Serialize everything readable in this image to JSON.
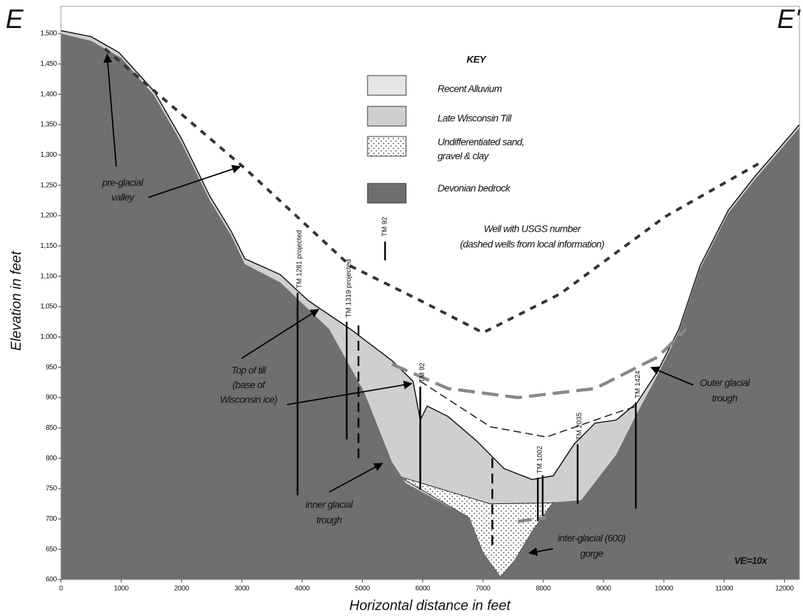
{
  "chart_data": {
    "type": "cross-section",
    "section_start": "E",
    "section_end": "E'",
    "xlabel": "Horizontal distance in feet",
    "ylabel": "Elevation in feet",
    "xlim": [
      0,
      12250
    ],
    "ylim": [
      600,
      1545
    ],
    "xticks": [
      0,
      1000,
      2000,
      3000,
      4000,
      5000,
      6000,
      7000,
      8000,
      9000,
      10000,
      11000,
      12000
    ],
    "yticks": [
      600,
      650,
      700,
      750,
      800,
      850,
      900,
      950,
      {
        "value": 1000,
        "label": "1,000"
      },
      {
        "value": 1050,
        "label": "1,050"
      },
      {
        "value": 1100,
        "label": "1,100"
      },
      {
        "value": 1150,
        "label": "1,150"
      },
      {
        "value": 1200,
        "label": "1,200"
      },
      {
        "value": 1250,
        "label": "1,250"
      },
      {
        "value": 1300,
        "label": "1,300"
      },
      {
        "value": 1350,
        "label": "1,350"
      },
      {
        "value": 1400,
        "label": "1,400"
      },
      {
        "value": 1450,
        "label": "1,450"
      },
      {
        "value": 1500,
        "label": "1,500"
      }
    ],
    "ground_surface": {
      "color": "#cfcfcf",
      "x": [
        0,
        500,
        960,
        1545,
        2010,
        2470,
        2820,
        3050,
        3635,
        4100,
        4800,
        5490,
        5840,
        5960,
        6075,
        6420,
        6890,
        7350,
        7815,
        8165,
        8510,
        8860,
        9210,
        9560,
        9900,
        10250,
        10600,
        11070,
        11530,
        11880,
        12250
      ],
      "y": [
        1505,
        1495,
        1469,
        1405,
        1325,
        1232,
        1175,
        1129,
        1103,
        1060,
        1013,
        961,
        927,
        863,
        886,
        869,
        829,
        783,
        765,
        771,
        823,
        858,
        863,
        892,
        944,
        1013,
        1117,
        1209,
        1267,
        1307,
        1350
      ]
    },
    "bedrock_surface": {
      "color": "#6f6f6f",
      "x": [
        0,
        500,
        1000,
        1545,
        2010,
        2470,
        2820,
        3050,
        3635,
        4450,
        5030,
        5490,
        5720,
        6770,
        7000,
        7290,
        7530,
        7815,
        8165,
        8630,
        9210,
        9560,
        9900,
        10250,
        10600,
        11070,
        11530,
        11880,
        12250
      ],
      "y": [
        1500,
        1488,
        1460,
        1398,
        1318,
        1225,
        1168,
        1120,
        1090,
        1013,
        909,
        794,
        759,
        702,
        644,
        604,
        632,
        679,
        727,
        731,
        806,
        875,
        938,
        1008,
        1112,
        1204,
        1262,
        1302,
        1345
      ]
    },
    "sand_gravel_clay": {
      "x": [
        5610,
        7120,
        8510,
        8165,
        7815,
        7530,
        7290,
        7000,
        6770
      ],
      "y": [
        770,
        725,
        727,
        727,
        679,
        632,
        604,
        644,
        702
      ]
    },
    "pre_glacial_valley": {
      "color": "#333333",
      "x": [
        730,
        3050,
        4800,
        5960,
        7000,
        8280,
        10020,
        11650
      ],
      "y": [
        1475,
        1278,
        1117,
        1060,
        1007,
        1071,
        1198,
        1290
      ]
    },
    "outer_glacial_trough": {
      "color": "#888888",
      "x": [
        5490,
        6420,
        7580,
        8860,
        9900,
        10370
      ],
      "y": [
        955,
        915,
        900,
        915,
        967,
        1013
      ]
    },
    "inner_glacial_trough": {
      "color": "#222222",
      "x": [
        5960,
        7120,
        8050,
        9210,
        9560
      ],
      "y": [
        927,
        852,
        835,
        875,
        886
      ]
    },
    "inter_glacial_gorge": {
      "color": "#888888",
      "x": [
        7580,
        8050
      ],
      "y": [
        696,
        702
      ]
    },
    "wells": [
      {
        "label": "TM 1281 projected",
        "x": 3925,
        "top": 1073,
        "bottom": 739
      },
      {
        "label": "TM 1319 projected",
        "x": 4740,
        "top": 1025,
        "bottom": 831
      },
      {
        "x": 4935,
        "top": 1019,
        "bottom": 800,
        "dashed": true
      },
      {
        "label": "TM 92",
        "x": 5960,
        "top": 918,
        "bottom": 748
      },
      {
        "x": 7155,
        "top": 800,
        "bottom": 656,
        "dashed": true
      },
      {
        "label": "TM 1002",
        "x": 7910,
        "top": 768,
        "bottom": 696
      },
      {
        "x": 7990,
        "top": 772,
        "bottom": 705
      },
      {
        "label": "TM 2035",
        "x": 8570,
        "top": 823,
        "bottom": 725
      },
      {
        "label": "TM 1424",
        "x": 9535,
        "top": 892,
        "bottom": 717
      }
    ],
    "key": {
      "title": "KEY",
      "items": [
        "Recent Alluvium",
        "Late Wisconsin Till",
        [
          "Undifferentiated sand,",
          "gravel & clay"
        ],
        "Devonian bedrock"
      ],
      "well_symbol": "TM 92",
      "well_text": [
        "Well with USGS number",
        "(dashed wells from local information)"
      ]
    },
    "annotations": {
      "pre_glacial": [
        "pre-glacial",
        "valley"
      ],
      "top_of_till": [
        "Top of till",
        "(base of",
        "Wisconsin ice)"
      ],
      "inner": [
        "inner glacial",
        "trough"
      ],
      "outer": [
        "Outer glacial",
        "trough"
      ],
      "gorge": [
        "inter-glacial (600)",
        "gorge"
      ],
      "ve": "VE=10x"
    }
  }
}
